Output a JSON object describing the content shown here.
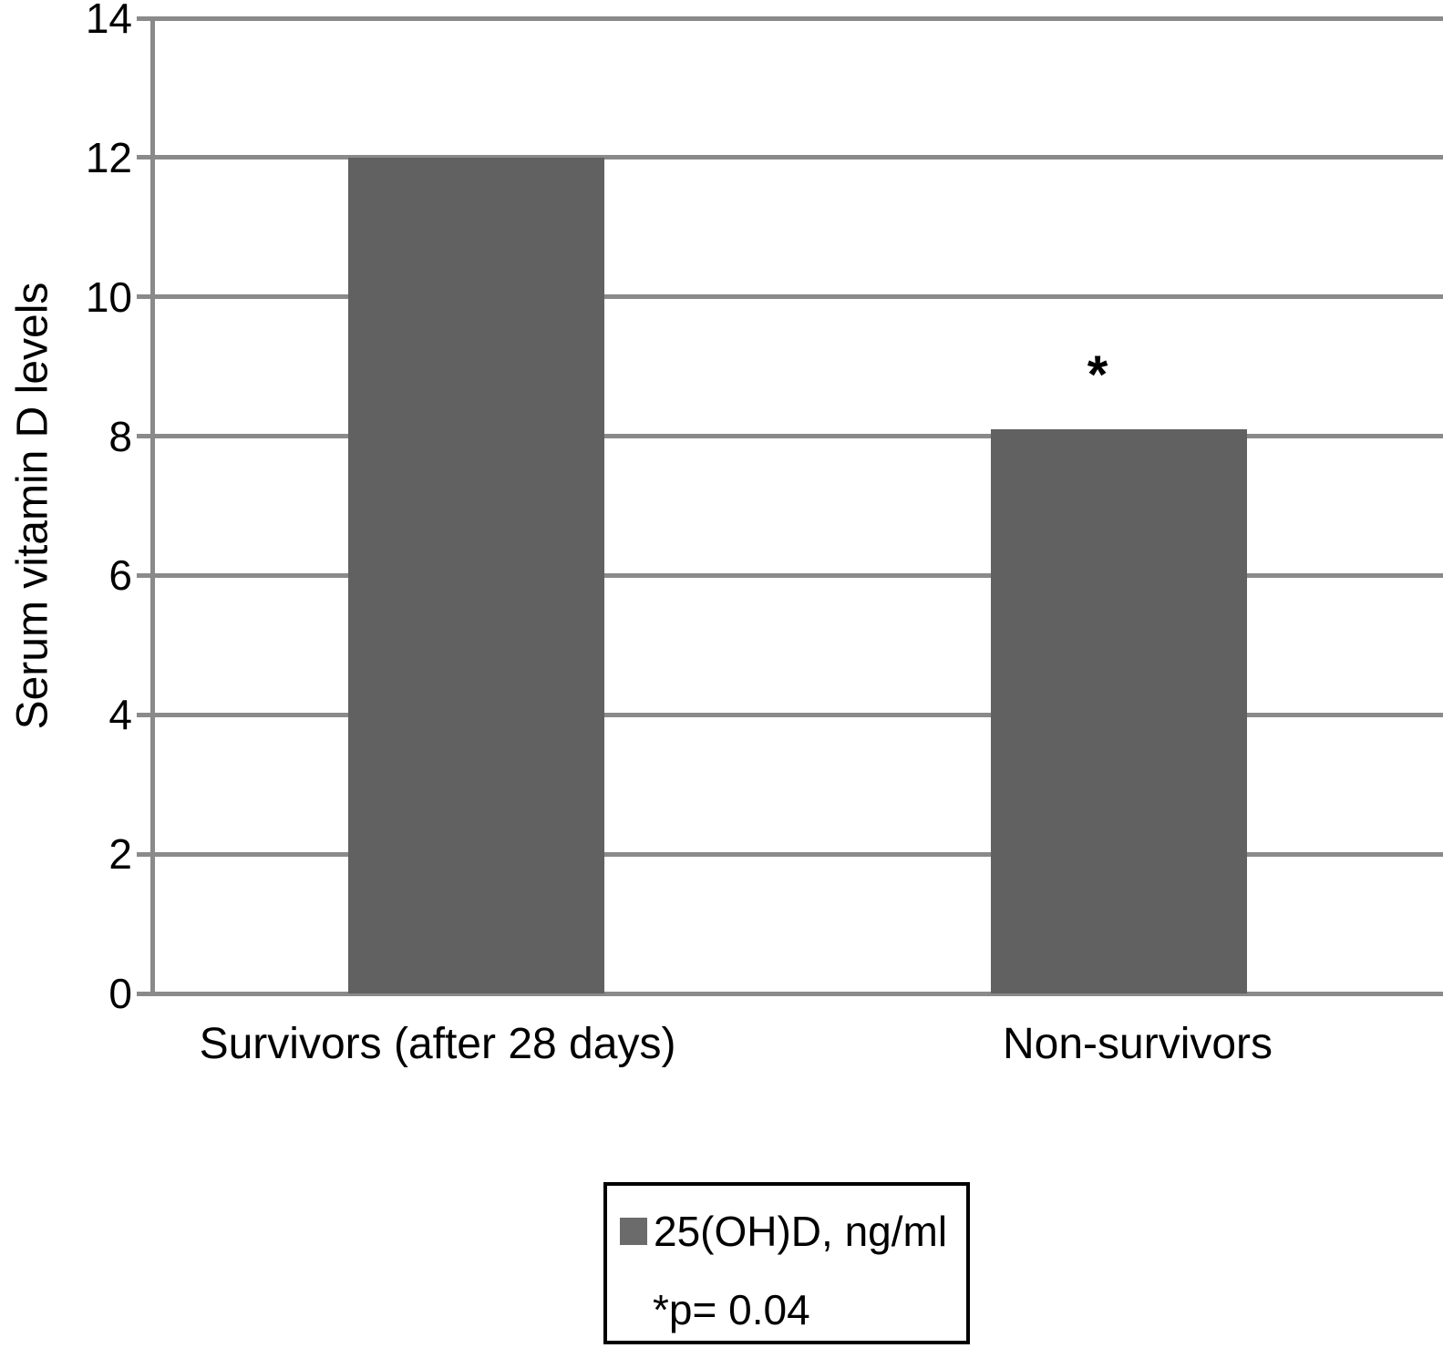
{
  "chart_data": {
    "type": "bar",
    "title": "",
    "xlabel": "",
    "ylabel": "Serum vitamin D levels",
    "categories": [
      "Survivors (after 28 days)",
      "Non-survivors"
    ],
    "series": [
      {
        "name": "25(OH)D, ng/ml",
        "values": [
          12,
          8.1
        ]
      }
    ],
    "ylim": [
      0,
      14
    ],
    "yticks": [
      0,
      2,
      4,
      6,
      8,
      10,
      12,
      14
    ],
    "grid": "horizontal",
    "legend_position": "bottom",
    "annotations": [
      {
        "category_index": 1,
        "text": "*"
      }
    ]
  },
  "legend": {
    "series_label": "25(OH)D, ng/ml",
    "note": "*p= 0.04"
  },
  "colors": {
    "bar": "#616161",
    "legend_swatch": "#6b6b6b",
    "grid": "#8a8a8a",
    "text": "#000000",
    "background": "#ffffff"
  }
}
